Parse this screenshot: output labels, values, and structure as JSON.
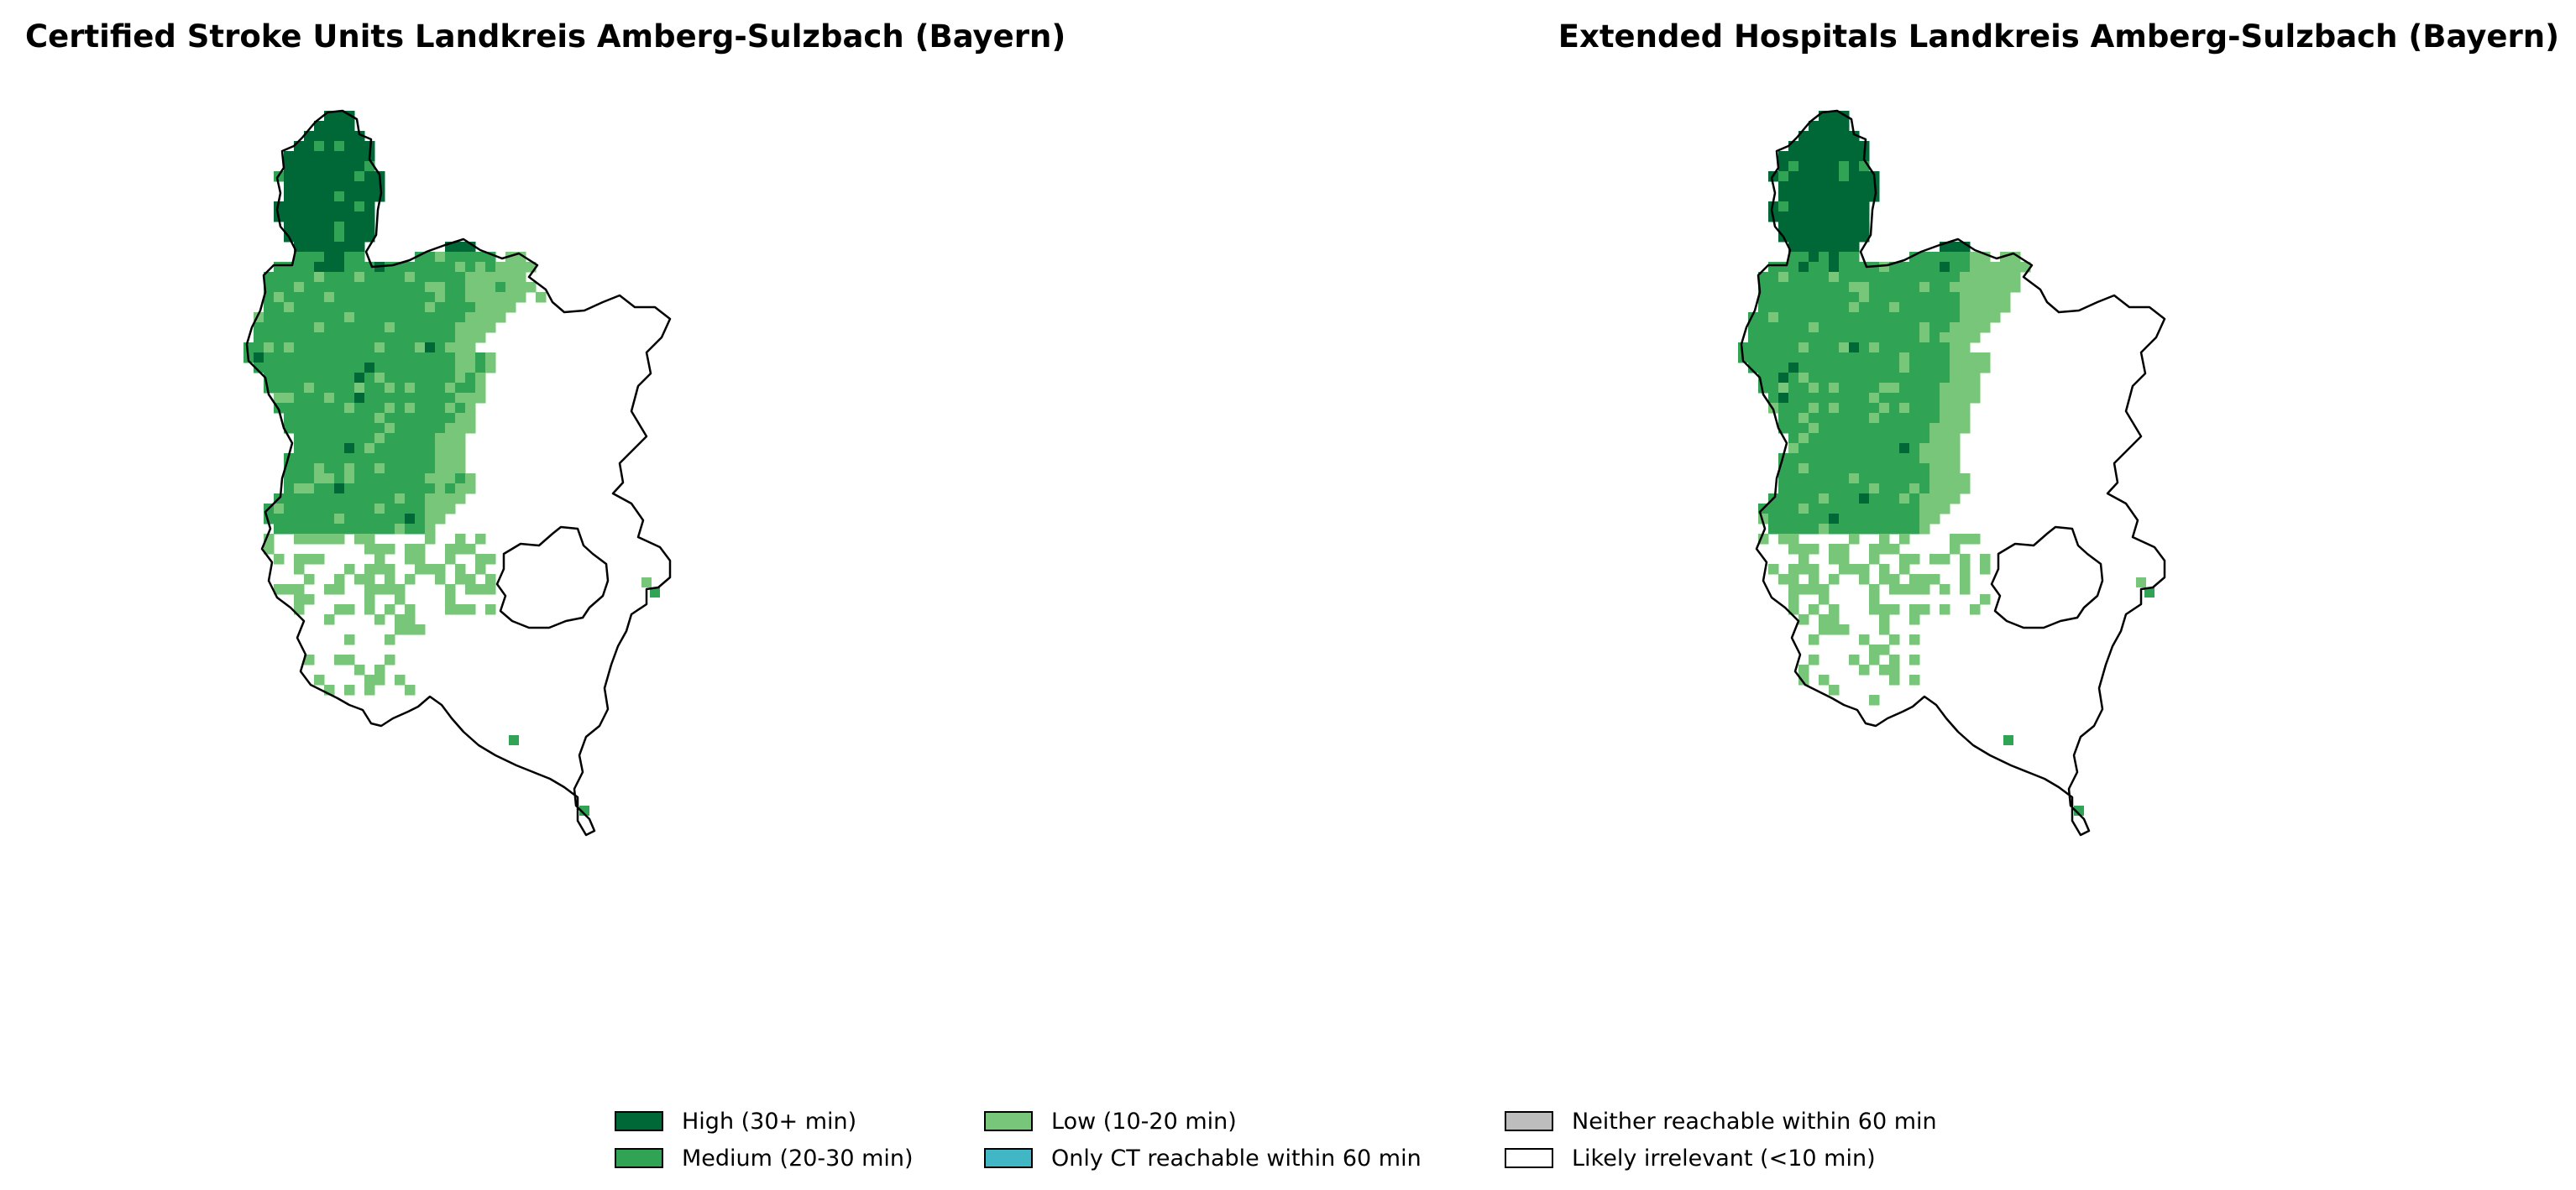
{
  "maps": [
    {
      "title": "Certified Stroke Units Landkreis Amberg-Sulzbach (Bayern)"
    },
    {
      "title": "Extended Hospitals Landkreis Amberg-Sulzbach (Bayern)"
    }
  ],
  "legend": [
    {
      "label": "High (30+ min)",
      "color": "#006837"
    },
    {
      "label": "Medium (20-30 min)",
      "color": "#31a354"
    },
    {
      "label": "Low (10-20 min)",
      "color": "#78c679"
    },
    {
      "label": "Only CT reachable within 60 min",
      "color": "#41b6c4"
    },
    {
      "label": "Neither reachable within 60 min",
      "color": "#bdbdbd"
    },
    {
      "label": "Likely irrelevant (<10 min)",
      "color": "#ffffff"
    }
  ]
}
